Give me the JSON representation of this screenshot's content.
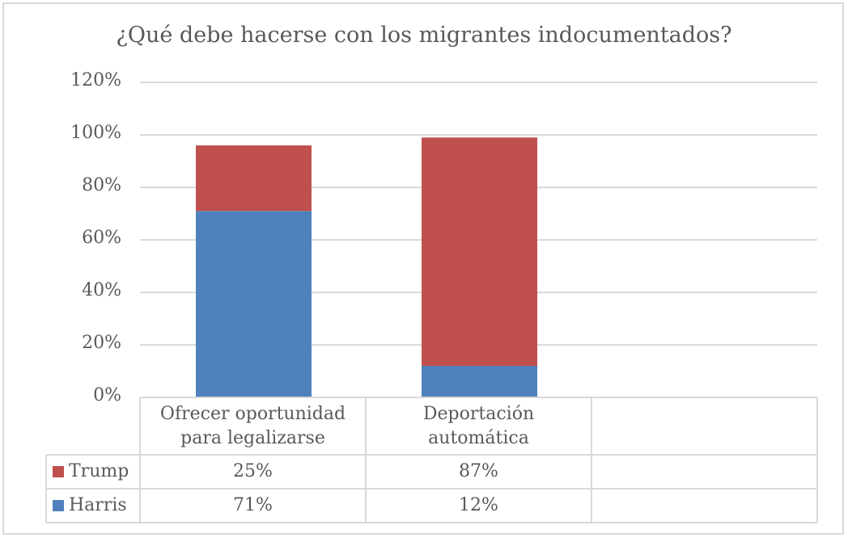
{
  "chart_data": {
    "type": "bar",
    "stacked": true,
    "title": "¿Qué debe hacerse con los migrantes indocumentados?",
    "categories": [
      "Ofrecer oportunidad para legalizarse",
      "Deportación automática",
      ""
    ],
    "series": [
      {
        "name": "Harris",
        "values": [
          71,
          12,
          null
        ],
        "labels": [
          "71%",
          "12%",
          ""
        ],
        "color": "#4f81bd"
      },
      {
        "name": "Trump",
        "values": [
          25,
          87,
          null
        ],
        "labels": [
          "25%",
          "87%",
          ""
        ],
        "color": "#c0504d"
      }
    ],
    "ylim": [
      0,
      120
    ],
    "yticks": [
      "0%",
      "20%",
      "40%",
      "60%",
      "80%",
      "100%",
      "120%"
    ],
    "grid": true,
    "legend": "data-table"
  }
}
